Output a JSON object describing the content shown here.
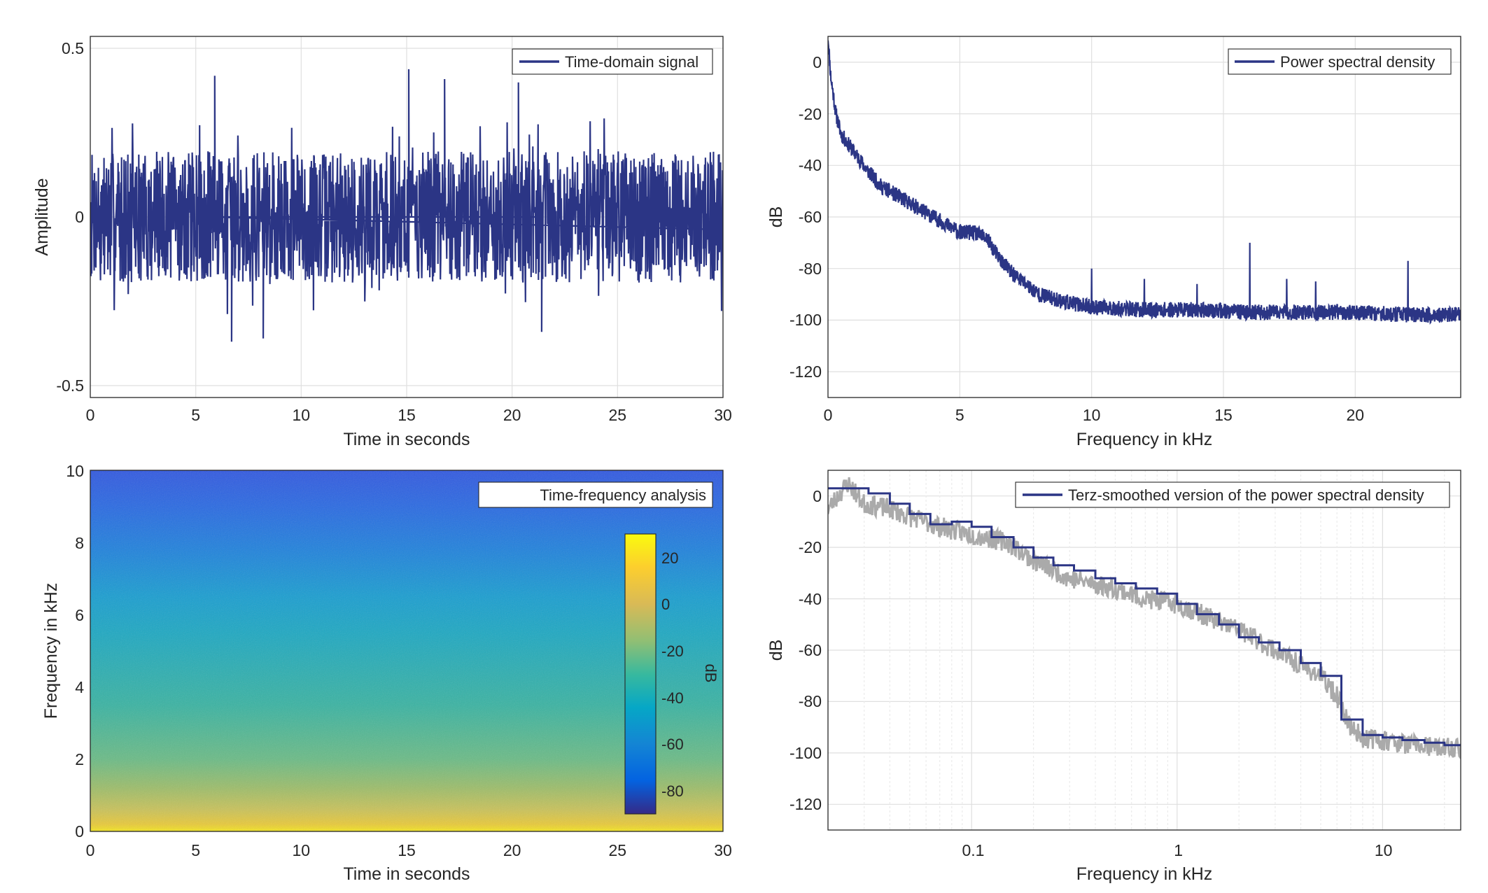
{
  "colors": {
    "series": "#2b3585",
    "grid": "#dfdfdf",
    "axes": "#262626",
    "raw_psd": "#aaaaaa",
    "background": "#ffffff"
  },
  "chart_data": [
    {
      "type": "line",
      "legend": [
        "Time-domain signal"
      ],
      "legend_location": "top-right",
      "xlabel": "Time in seconds",
      "ylabel": "Amplitude",
      "xlim": [
        0,
        30
      ],
      "ylim": [
        -0.55,
        0.55
      ],
      "xticks": [
        0,
        5,
        10,
        15,
        20,
        25,
        30
      ],
      "xticklabels": [
        "0",
        "5",
        "10",
        "15",
        "20",
        "25",
        "30"
      ],
      "yticks": [
        -0.5,
        0,
        0.5
      ],
      "yticklabels": [
        "-0.5",
        "0",
        "0.5"
      ],
      "grid": true,
      "series": [
        {
          "name": "Time-domain signal",
          "description": "noise-like signal, mostly within ±0.2, peaks near ±0.3",
          "envelope_upper": 0.2,
          "envelope_lower": -0.2,
          "peaks": [
            {
              "t": 5.9,
              "value": 0.43
            },
            {
              "t": 15.1,
              "value": 0.45
            },
            {
              "t": 16.8,
              "value": 0.42
            },
            {
              "t": 20.3,
              "value": 0.41
            },
            {
              "t": 6.7,
              "value": -0.38
            },
            {
              "t": 8.2,
              "value": -0.37
            },
            {
              "t": 21.4,
              "value": -0.35
            }
          ]
        }
      ]
    },
    {
      "type": "line",
      "legend": [
        "Power spectral density"
      ],
      "legend_location": "top-right",
      "xlabel": "Frequency in kHz",
      "ylabel": "dB",
      "xlim": [
        0,
        24
      ],
      "ylim": [
        -130,
        10
      ],
      "xticks": [
        0,
        5,
        10,
        15,
        20
      ],
      "xticklabels": [
        "0",
        "5",
        "10",
        "15",
        "20"
      ],
      "yticks": [
        0,
        -20,
        -40,
        -60,
        -80,
        -100,
        -120
      ],
      "yticklabels": [
        "0",
        "-20",
        "-40",
        "-60",
        "-80",
        "-100",
        "-120"
      ],
      "grid": true,
      "series": [
        {
          "name": "Power spectral density",
          "x": [
            0,
            0.1,
            0.3,
            0.5,
            1,
            1.5,
            2,
            3,
            4,
            5,
            5.5,
            6,
            6.5,
            7,
            8,
            9,
            10,
            12,
            14,
            16,
            18,
            20,
            22,
            24
          ],
          "y": [
            10,
            -5,
            -20,
            -28,
            -35,
            -42,
            -48,
            -54,
            -60,
            -66,
            -66,
            -68,
            -76,
            -82,
            -90,
            -93,
            -95,
            -96,
            -96,
            -97,
            -97,
            -97,
            -98,
            -98
          ],
          "peaks": [
            {
              "x": 10,
              "y": -80
            },
            {
              "x": 12,
              "y": -84
            },
            {
              "x": 14,
              "y": -86
            },
            {
              "x": 16,
              "y": -70
            },
            {
              "x": 17.4,
              "y": -84
            },
            {
              "x": 18.5,
              "y": -85
            },
            {
              "x": 22,
              "y": -77
            }
          ]
        }
      ]
    },
    {
      "type": "heatmap",
      "legend": [
        "Time-frequency analysis"
      ],
      "legend_location": "top-right",
      "xlabel": "Time in seconds",
      "ylabel": "Frequency in kHz",
      "xlim": [
        0,
        30
      ],
      "ylim": [
        0,
        10
      ],
      "xticks": [
        0,
        5,
        10,
        15,
        20,
        25,
        30
      ],
      "xticklabels": [
        "0",
        "5",
        "10",
        "15",
        "20",
        "25",
        "30"
      ],
      "yticks": [
        0,
        2,
        4,
        6,
        8,
        10
      ],
      "yticklabels": [
        "0",
        "2",
        "4",
        "6",
        "8",
        "10"
      ],
      "colorbar": {
        "label": "dB",
        "clim": [
          -90,
          30
        ],
        "ticks": [
          20,
          0,
          -20,
          -40,
          -60,
          -80
        ],
        "ticklabels": [
          "20",
          "0",
          "-20",
          "-40",
          "-60",
          "-80"
        ],
        "colormap": "parula"
      },
      "level_by_frequency_khz": [
        {
          "f": 0,
          "db": 5
        },
        {
          "f": 0.5,
          "db": -5
        },
        {
          "f": 1,
          "db": -12
        },
        {
          "f": 2,
          "db": -22
        },
        {
          "f": 4,
          "db": -32
        },
        {
          "f": 6,
          "db": -38
        },
        {
          "f": 7,
          "db": -50
        },
        {
          "f": 8,
          "db": -58
        },
        {
          "f": 10,
          "db": -68
        }
      ]
    },
    {
      "type": "line",
      "legend": [
        "Terz-smoothed version of the power spectral density"
      ],
      "legend_location": "top-right",
      "xlabel": "Frequency in kHz",
      "ylabel": "dB",
      "xscale": "log",
      "xlim": [
        0.02,
        24
      ],
      "ylim": [
        -130,
        10
      ],
      "xticks": [
        0.1,
        1,
        10
      ],
      "xticklabels": [
        "0.1",
        "1",
        "10"
      ],
      "yticks": [
        0,
        -20,
        -40,
        -60,
        -80,
        -100,
        -120
      ],
      "yticklabels": [
        "0",
        "-20",
        "-40",
        "-60",
        "-80",
        "-100",
        "-120"
      ],
      "grid": true,
      "series": [
        {
          "name": "Terz-smoothed version of the power spectral density",
          "x": [
            0.02,
            0.025,
            0.0315,
            0.04,
            0.05,
            0.063,
            0.08,
            0.1,
            0.125,
            0.16,
            0.2,
            0.25,
            0.315,
            0.4,
            0.5,
            0.63,
            0.8,
            1,
            1.25,
            1.6,
            2,
            2.5,
            3.15,
            4,
            5,
            6.3,
            8,
            10,
            12.5,
            16,
            20,
            24
          ],
          "y": [
            3,
            3,
            1,
            -3,
            -7,
            -11,
            -10,
            -12,
            -16,
            -20,
            -24,
            -27,
            -29,
            -32,
            -34,
            -36,
            -38,
            -42,
            -46,
            -50,
            -55,
            -57,
            -60,
            -65,
            -70,
            -87,
            -93,
            -94,
            -95,
            -96,
            -97,
            -97
          ]
        },
        {
          "name": "Raw power spectral density",
          "x": [
            0.02,
            0.025,
            0.03,
            0.04,
            0.05,
            0.07,
            0.1,
            0.15,
            0.2,
            0.3,
            0.5,
            0.7,
            1,
            1.5,
            2,
            3,
            4,
            5,
            6,
            7,
            8,
            10,
            12,
            15,
            18,
            20,
            24
          ],
          "y": [
            -5,
            5,
            -3,
            -5,
            -8,
            -12,
            -15,
            -18,
            -25,
            -32,
            -36,
            -40,
            -42,
            -48,
            -52,
            -60,
            -66,
            -70,
            -78,
            -90,
            -94,
            -95,
            -96,
            -97,
            -98,
            -98,
            -98
          ]
        }
      ]
    }
  ]
}
